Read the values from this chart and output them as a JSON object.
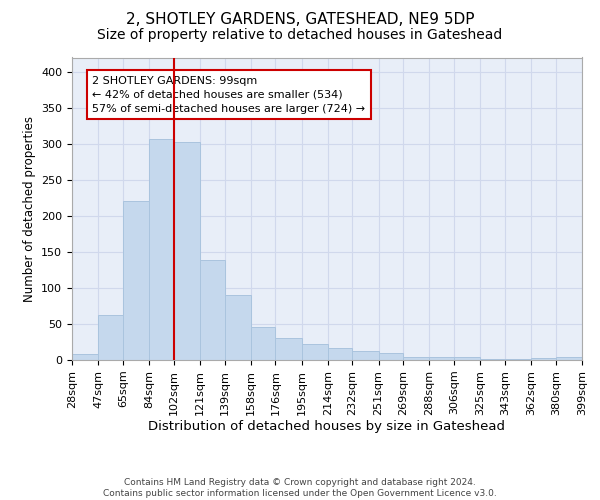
{
  "title": "2, SHOTLEY GARDENS, GATESHEAD, NE9 5DP",
  "subtitle": "Size of property relative to detached houses in Gateshead",
  "xlabel": "Distribution of detached houses by size in Gateshead",
  "ylabel": "Number of detached properties",
  "bar_color": "#c5d8ed",
  "bar_edge_color": "#aac4de",
  "vline_x": 102,
  "vline_color": "#cc0000",
  "annotation_text": "2 SHOTLEY GARDENS: 99sqm\n← 42% of detached houses are smaller (534)\n57% of semi-detached houses are larger (724) →",
  "bin_edges": [
    28,
    47,
    65,
    84,
    102,
    121,
    139,
    158,
    176,
    195,
    214,
    232,
    251,
    269,
    288,
    306,
    325,
    343,
    362,
    380,
    399
  ],
  "bar_heights": [
    8,
    63,
    221,
    307,
    303,
    139,
    90,
    46,
    30,
    22,
    16,
    13,
    10,
    4,
    4,
    4,
    2,
    2,
    3,
    4
  ],
  "ylim": [
    0,
    420
  ],
  "yticks": [
    0,
    50,
    100,
    150,
    200,
    250,
    300,
    350,
    400
  ],
  "grid_color": "#d0d8ec",
  "background_color": "#e8eef8",
  "footer_text": "Contains HM Land Registry data © Crown copyright and database right 2024.\nContains public sector information licensed under the Open Government Licence v3.0.",
  "title_fontsize": 11,
  "subtitle_fontsize": 10,
  "xlabel_fontsize": 9.5,
  "ylabel_fontsize": 8.5,
  "tick_fontsize": 8,
  "annotation_fontsize": 8
}
